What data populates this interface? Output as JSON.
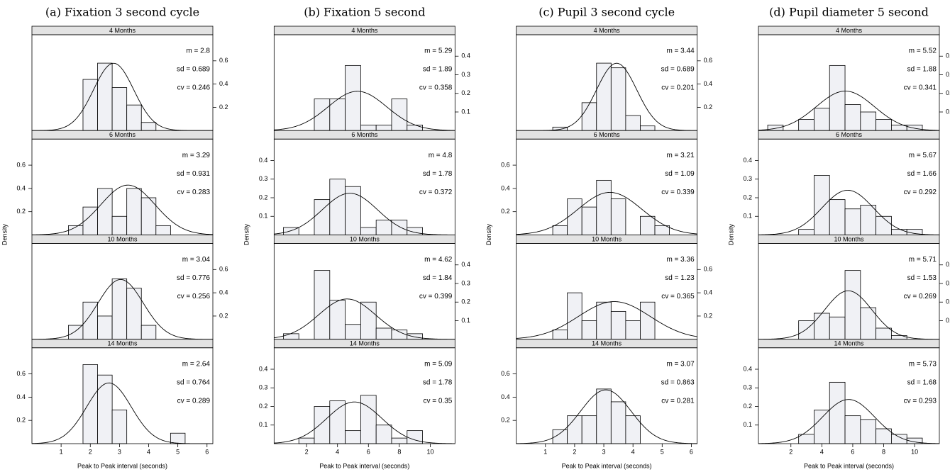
{
  "chart_data": [
    {
      "type": "histogram",
      "title": "(a) Fixation 3 second cycle",
      "xlabel": "Peak to Peak interval (seconds)",
      "ylabel": "Density",
      "xlim": [
        0,
        6.2
      ],
      "xticks": [
        1,
        2,
        3,
        4,
        5,
        6
      ],
      "ylim": [
        0,
        0.8
      ],
      "yticks": [
        0.2,
        0.4,
        0.6
      ],
      "color": "#f0f1f5",
      "panels": [
        {
          "strip": "4 Months",
          "bins": [
            1.75,
            2.25,
            2.75,
            3.25,
            3.75,
            4.25
          ],
          "values": [
            0.44,
            0.58,
            0.37,
            0.22,
            0.07
          ],
          "stats": {
            "m": {
              "value": 2.8,
              "label": "m = 2.8"
            },
            "sd": {
              "value": 0.689,
              "label": "sd = 0.689"
            },
            "cv": {
              "value": 0.246,
              "label": "cv = 0.246"
            }
          }
        },
        {
          "strip": "6 Months",
          "bins": [
            1.25,
            1.75,
            2.25,
            2.75,
            3.25,
            3.75,
            4.25,
            4.75
          ],
          "values": [
            0.08,
            0.24,
            0.4,
            0.16,
            0.4,
            0.32,
            0.08
          ],
          "stats": {
            "m": {
              "value": 3.29,
              "label": "m = 3.29"
            },
            "sd": {
              "value": 0.931,
              "label": "sd = 0.931"
            },
            "cv": {
              "value": 0.283,
              "label": "cv = 0.283"
            }
          }
        },
        {
          "strip": "10 Months",
          "bins": [
            1.25,
            1.75,
            2.25,
            2.75,
            3.25,
            3.75,
            4.25
          ],
          "values": [
            0.12,
            0.32,
            0.2,
            0.52,
            0.44,
            0.12
          ],
          "stats": {
            "m": {
              "value": 3.04,
              "label": "m = 3.04"
            },
            "sd": {
              "value": 0.776,
              "label": "sd = 0.776"
            },
            "cv": {
              "value": 0.256,
              "label": "cv = 0.256"
            }
          }
        },
        {
          "strip": "14 Months",
          "bins": [
            1.75,
            2.25,
            2.75,
            3.25,
            3.75,
            4.25,
            4.75,
            5.25
          ],
          "values": [
            0.68,
            0.59,
            0.29,
            0,
            0,
            0,
            0.09
          ],
          "stats": {
            "m": {
              "value": 2.64,
              "label": "m = 2.64"
            },
            "sd": {
              "value": 0.764,
              "label": "sd = 0.764"
            },
            "cv": {
              "value": 0.289,
              "label": "cv = 0.289"
            }
          }
        }
      ]
    },
    {
      "type": "histogram",
      "title": "(b) Fixation 5 second",
      "xlabel": "Peak to Peak interval (seconds)",
      "ylabel": "Density",
      "xlim": [
        -0.1,
        11.6
      ],
      "xticks": [
        2,
        4,
        6,
        8,
        10
      ],
      "ylim": [
        0,
        0.5
      ],
      "yticks": [
        0.1,
        0.2,
        0.3,
        0.4
      ],
      "color": "#f0f1f5",
      "panels": [
        {
          "strip": "4 Months",
          "bins": [
            2.5,
            3.5,
            4.5,
            5.5,
            6.5,
            7.5,
            8.5,
            9.5
          ],
          "values": [
            0.17,
            0.17,
            0.35,
            0.03,
            0.03,
            0.17,
            0.03
          ],
          "stats": {
            "m": {
              "value": 5.29,
              "label": "m = 5.29"
            },
            "sd": {
              "value": 1.89,
              "label": "sd = 1.89"
            },
            "cv": {
              "value": 0.358,
              "label": "cv = 0.358"
            }
          }
        },
        {
          "strip": "6 Months",
          "bins": [
            0.5,
            1.5,
            2.5,
            3.5,
            4.5,
            5.5,
            6.5,
            7.5,
            8.5,
            9.5
          ],
          "values": [
            0.04,
            0,
            0.19,
            0.3,
            0.26,
            0.04,
            0.08,
            0.08,
            0.04
          ],
          "stats": {
            "m": {
              "value": 4.8,
              "label": "m = 4.8"
            },
            "sd": {
              "value": 1.78,
              "label": "sd = 1.78"
            },
            "cv": {
              "value": 0.372,
              "label": "cv = 0.372"
            }
          }
        },
        {
          "strip": "10 Months",
          "bins": [
            0.5,
            1.5,
            2.5,
            3.5,
            4.5,
            5.5,
            6.5,
            7.5,
            8.5,
            9.5
          ],
          "values": [
            0.03,
            0,
            0.37,
            0.21,
            0.08,
            0.2,
            0.06,
            0.05,
            0.03
          ],
          "stats": {
            "m": {
              "value": 4.62,
              "label": "m = 4.62"
            },
            "sd": {
              "value": 1.84,
              "label": "sd = 1.84"
            },
            "cv": {
              "value": 0.399,
              "label": "cv = 0.399"
            }
          }
        },
        {
          "strip": "14 Months",
          "bins": [
            1.5,
            2.5,
            3.5,
            4.5,
            5.5,
            6.5,
            7.5,
            8.5,
            9.5
          ],
          "values": [
            0.03,
            0.2,
            0.23,
            0.07,
            0.26,
            0.1,
            0.03,
            0.07
          ],
          "stats": {
            "m": {
              "value": 5.09,
              "label": "m = 5.09"
            },
            "sd": {
              "value": 1.78,
              "label": "sd = 1.78"
            },
            "cv": {
              "value": 0.35,
              "label": "cv = 0.35"
            }
          }
        }
      ]
    },
    {
      "type": "histogram",
      "title": "(c) Pupil 3 second cycle",
      "xlabel": "Peak to Peak interval (seconds)",
      "ylabel": "Density",
      "xlim": [
        0,
        6.2
      ],
      "xticks": [
        1,
        2,
        3,
        4,
        5,
        6
      ],
      "ylim": [
        0,
        0.8
      ],
      "yticks": [
        0.2,
        0.4,
        0.6
      ],
      "color": "#f0f1f5",
      "panels": [
        {
          "strip": "4 Months",
          "bins": [
            1.25,
            1.75,
            2.25,
            2.75,
            3.25,
            3.75,
            4.25,
            4.75
          ],
          "values": [
            0.03,
            0,
            0.24,
            0.58,
            0.54,
            0.13,
            0.04
          ],
          "stats": {
            "m": {
              "value": 3.44,
              "label": "m = 3.44"
            },
            "sd": {
              "value": 0.689,
              "label": "sd = 0.689"
            },
            "cv": {
              "value": 0.201,
              "label": "cv = 0.201"
            }
          }
        },
        {
          "strip": "6 Months",
          "bins": [
            1.25,
            1.75,
            2.25,
            2.75,
            3.25,
            3.75,
            4.25,
            4.75,
            5.25
          ],
          "values": [
            0.08,
            0.31,
            0.24,
            0.47,
            0.31,
            0,
            0.16,
            0.08
          ],
          "stats": {
            "m": {
              "value": 3.21,
              "label": "m = 3.21"
            },
            "sd": {
              "value": 1.09,
              "label": "sd = 1.09"
            },
            "cv": {
              "value": 0.339,
              "label": "cv = 0.339"
            }
          }
        },
        {
          "strip": "10 Months",
          "bins": [
            1.25,
            1.75,
            2.25,
            2.75,
            3.25,
            3.75,
            4.25,
            4.75
          ],
          "values": [
            0.08,
            0.4,
            0.16,
            0.32,
            0.24,
            0.16,
            0.32
          ],
          "stats": {
            "m": {
              "value": 3.36,
              "label": "m = 3.36"
            },
            "sd": {
              "value": 1.23,
              "label": "sd = 1.23"
            },
            "cv": {
              "value": 0.365,
              "label": "cv = 0.365"
            }
          }
        },
        {
          "strip": "14 Months",
          "bins": [
            1.25,
            1.75,
            2.25,
            2.75,
            3.25,
            3.75,
            4.25
          ],
          "values": [
            0.12,
            0.24,
            0.24,
            0.47,
            0.36,
            0.24
          ],
          "stats": {
            "m": {
              "value": 3.07,
              "label": "m = 3.07"
            },
            "sd": {
              "value": 0.863,
              "label": "sd = 0.863"
            },
            "cv": {
              "value": 0.281,
              "label": "cv = 0.281"
            }
          }
        }
      ]
    },
    {
      "type": "histogram",
      "title": "(d) Pupil diameter 5 second",
      "xlabel": "Peak to Peak interval (seconds)",
      "ylabel": "Density",
      "xlim": [
        -0.1,
        11.6
      ],
      "xticks": [
        2,
        4,
        6,
        8,
        10
      ],
      "ylim": [
        0,
        0.5
      ],
      "yticks": [
        0.1,
        0.2,
        0.3,
        0.4
      ],
      "color": "#f0f1f5",
      "panels": [
        {
          "strip": "4 Months",
          "bins": [
            0.5,
            1.5,
            2.5,
            3.5,
            4.5,
            5.5,
            6.5,
            7.5,
            8.5,
            9.5,
            10.5
          ],
          "values": [
            0.03,
            0,
            0.06,
            0.12,
            0.35,
            0.14,
            0.1,
            0.06,
            0.03,
            0.03
          ],
          "stats": {
            "m": {
              "value": 5.52,
              "label": "m = 5.52"
            },
            "sd": {
              "value": 1.88,
              "label": "sd = 1.88"
            },
            "cv": {
              "value": 0.341,
              "label": "cv = 0.341"
            }
          }
        },
        {
          "strip": "6 Months",
          "bins": [
            2.5,
            3.5,
            4.5,
            5.5,
            6.5,
            7.5,
            8.5,
            9.5,
            10.5
          ],
          "values": [
            0.03,
            0.32,
            0.19,
            0.14,
            0.16,
            0.1,
            0.03,
            0.03
          ],
          "stats": {
            "m": {
              "value": 5.67,
              "label": "m = 5.67"
            },
            "sd": {
              "value": 1.66,
              "label": "sd = 1.66"
            },
            "cv": {
              "value": 0.292,
              "label": "cv = 0.292"
            }
          }
        },
        {
          "strip": "10 Months",
          "bins": [
            2.5,
            3.5,
            4.5,
            5.5,
            6.5,
            7.5,
            8.5,
            9.5
          ],
          "values": [
            0.1,
            0.14,
            0.12,
            0.37,
            0.17,
            0.06,
            0.02
          ],
          "stats": {
            "m": {
              "value": 5.71,
              "label": "m = 5.71"
            },
            "sd": {
              "value": 1.53,
              "label": "sd = 1.53"
            },
            "cv": {
              "value": 0.269,
              "label": "cv = 0.269"
            }
          }
        },
        {
          "strip": "14 Months",
          "bins": [
            2.5,
            3.5,
            4.5,
            5.5,
            6.5,
            7.5,
            8.5,
            9.5,
            10.5
          ],
          "values": [
            0.05,
            0.18,
            0.33,
            0.15,
            0.13,
            0.08,
            0.05,
            0.03
          ],
          "stats": {
            "m": {
              "value": 5.73,
              "label": "m = 5.73"
            },
            "sd": {
              "value": 1.68,
              "label": "sd = 1.68"
            },
            "cv": {
              "value": 0.293,
              "label": "cv = 0.293"
            }
          }
        }
      ]
    }
  ]
}
